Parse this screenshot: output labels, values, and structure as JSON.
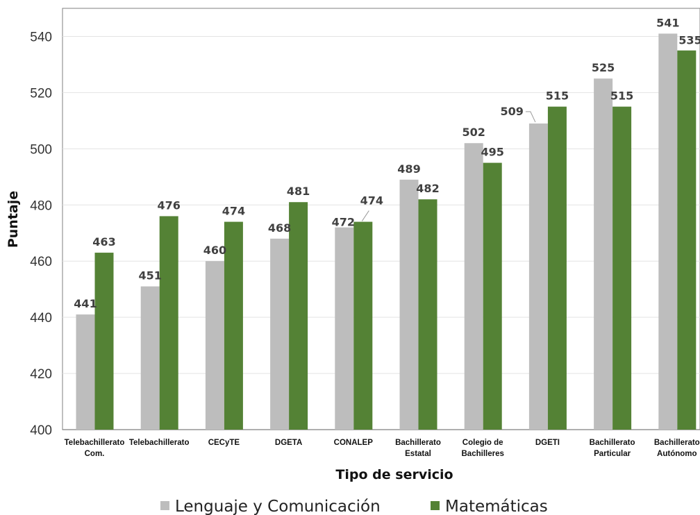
{
  "chart_data": {
    "type": "bar",
    "title": "",
    "xlabel": "Tipo de servicio",
    "ylabel": "Puntaje",
    "ylim": [
      400,
      550
    ],
    "yticks": [
      400,
      420,
      440,
      460,
      480,
      500,
      520,
      540
    ],
    "grid": true,
    "legend_position": "bottom",
    "categories": [
      [
        "Telebachillerato",
        "Com."
      ],
      [
        "Telebachillerato"
      ],
      [
        "CECyTE"
      ],
      [
        "DGETA"
      ],
      [
        "CONALEP"
      ],
      [
        "Bachillerato",
        "Estatal"
      ],
      [
        "Colegio de",
        "Bachilleres"
      ],
      [
        "DGETI"
      ],
      [
        "Bachillerato",
        "Particular"
      ],
      [
        "Bachillerato",
        "Autónomo"
      ]
    ],
    "series": [
      {
        "name": "Lenguaje y Comunicación",
        "color": "#bdbdbd",
        "values": [
          441,
          451,
          460,
          468,
          472,
          489,
          502,
          509,
          525,
          541
        ]
      },
      {
        "name": "Matemáticas",
        "color": "#548235",
        "values": [
          463,
          476,
          474,
          481,
          474,
          482,
          495,
          515,
          515,
          535
        ]
      }
    ]
  }
}
